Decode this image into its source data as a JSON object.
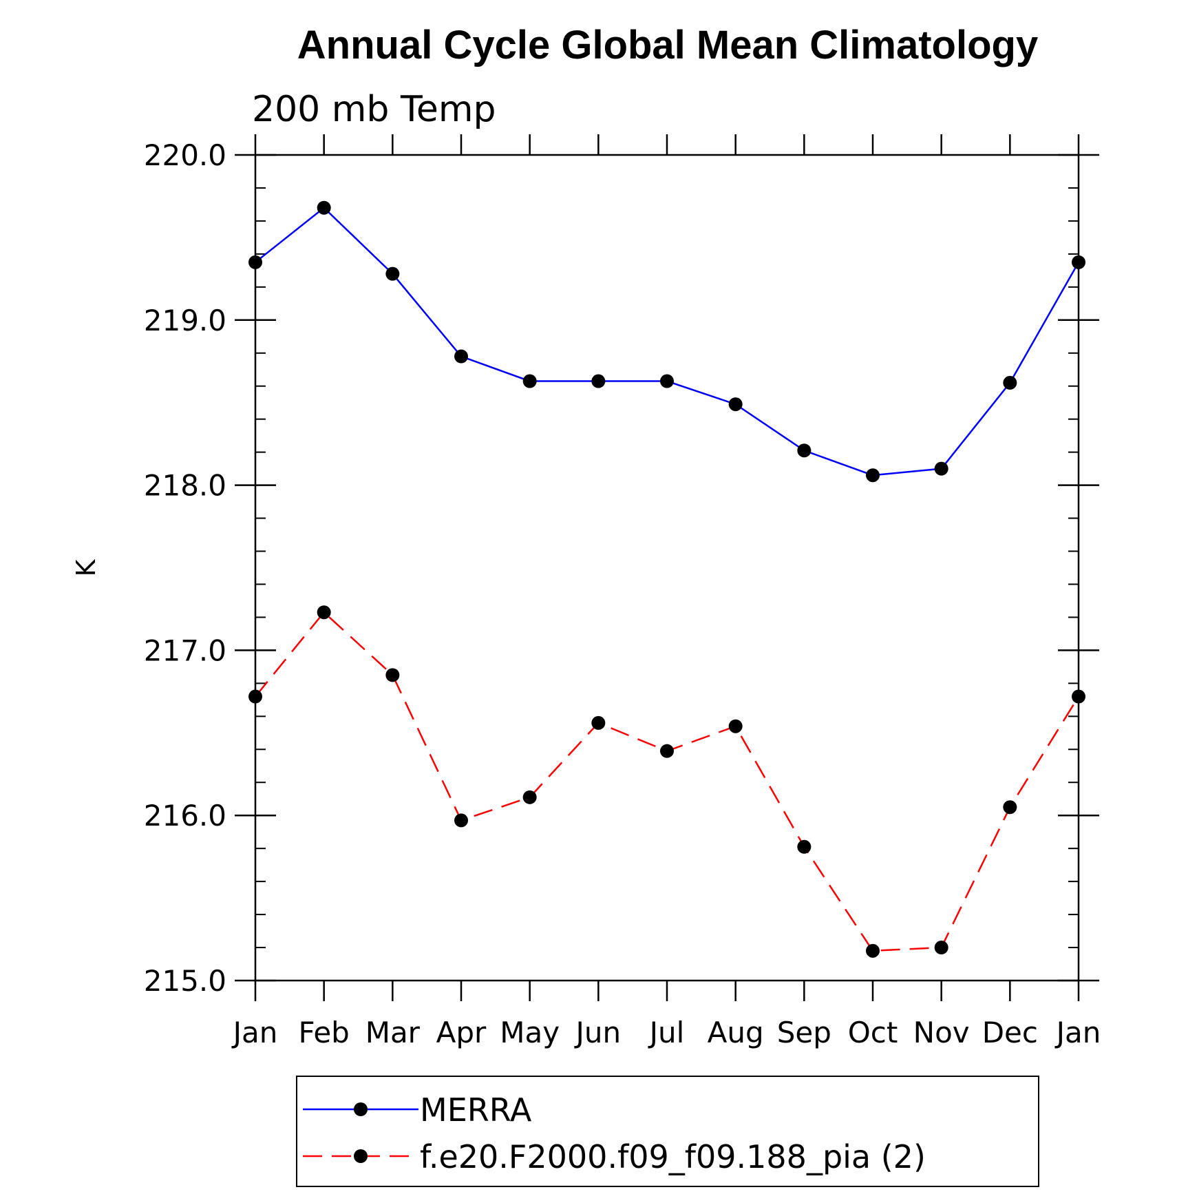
{
  "chart_data": {
    "type": "line",
    "title": "Annual Cycle Global Mean Climatology",
    "subtitle": "200 mb Temp",
    "xlabel": "",
    "ylabel": "K",
    "categories": [
      "Jan",
      "Feb",
      "Mar",
      "Apr",
      "May",
      "Jun",
      "Jul",
      "Aug",
      "Sep",
      "Oct",
      "Nov",
      "Dec",
      "Jan"
    ],
    "ylim": [
      215.0,
      220.0
    ],
    "yticks": [
      "215.0",
      "216.0",
      "217.0",
      "218.0",
      "219.0",
      "220.0"
    ],
    "yticks_values": [
      215.0,
      216.0,
      217.0,
      218.0,
      219.0,
      220.0
    ],
    "y_minor_step": 0.2,
    "grid": false,
    "legend_position": "bottom",
    "series": [
      {
        "name": "MERRA",
        "color": "#0000ff",
        "line_style": "solid",
        "marker": "filled-circle",
        "values": [
          219.35,
          219.68,
          219.28,
          218.78,
          218.63,
          218.63,
          218.63,
          218.49,
          218.21,
          218.06,
          218.1,
          218.62,
          219.35
        ]
      },
      {
        "name": "f.e20.F2000.f09_f09.188_pia (2)",
        "color": "#ff0000",
        "line_style": "dashed",
        "marker": "filled-circle",
        "values": [
          216.72,
          217.23,
          216.85,
          215.97,
          216.11,
          216.56,
          216.39,
          216.54,
          215.81,
          215.18,
          215.2,
          216.05,
          216.72
        ]
      }
    ]
  }
}
